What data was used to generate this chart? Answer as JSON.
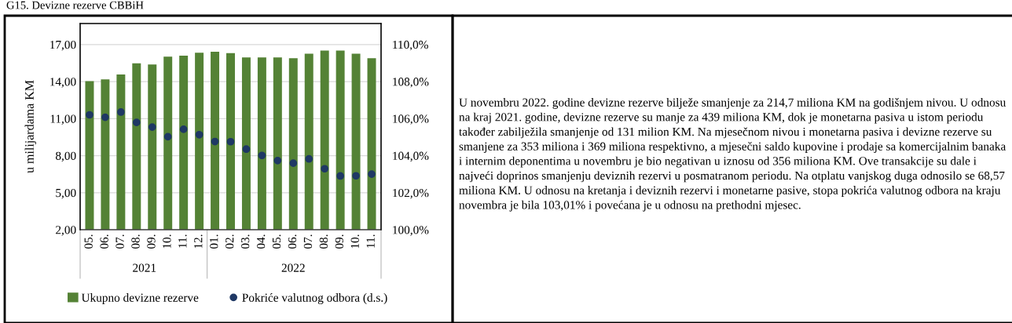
{
  "chart_data": {
    "type": "bar",
    "title": "G15. Devizne rezerve CBBiH",
    "ylabel": "u milijardama KM",
    "categories": [
      "05.",
      "06.",
      "07.",
      "08.",
      "09.",
      "10.",
      "11.",
      "12.",
      "01.",
      "02.",
      "03.",
      "04.",
      "05.",
      "06.",
      "07.",
      "08.",
      "09.",
      "10.",
      "11."
    ],
    "series": [
      {
        "name": "Ukupno devizne rezerve",
        "color": "#548235",
        "values": [
          14.04,
          14.17,
          14.57,
          15.47,
          15.39,
          16.01,
          16.1,
          16.34,
          16.42,
          16.31,
          15.95,
          15.95,
          15.96,
          15.89,
          16.25,
          16.51,
          16.51,
          16.25,
          15.89
        ]
      },
      {
        "name": "Pokriće valutnog odbora (d.s.)",
        "type": "scatter",
        "axis": "y2",
        "color": "#1f3864",
        "values": [
          106.2,
          106.07,
          106.35,
          105.79,
          105.54,
          105.02,
          105.42,
          105.13,
          104.76,
          104.75,
          104.35,
          104.01,
          103.73,
          103.59,
          103.82,
          103.29,
          102.9,
          102.91,
          103.0
        ]
      }
    ],
    "ylim": [
      2,
      18.7
    ],
    "yticks": [
      {
        "value": 2,
        "label": "2,00"
      },
      {
        "value": 5,
        "label": "5,00"
      },
      {
        "value": 8,
        "label": "8,00"
      },
      {
        "value": 11,
        "label": "11,00"
      },
      {
        "value": 14,
        "label": "14,00"
      },
      {
        "value": 17,
        "label": "17,00"
      }
    ],
    "y2lim": [
      100,
      111.13
    ],
    "y2ticks": [
      {
        "value": 100,
        "label": "100,0%"
      },
      {
        "value": 102,
        "label": "102,0%"
      },
      {
        "value": 104,
        "label": "104,0%"
      },
      {
        "value": 106,
        "label": "106,0%"
      },
      {
        "value": 108,
        "label": "108,0%"
      },
      {
        "value": 110,
        "label": "110,0%"
      }
    ],
    "grid": "y",
    "legend": "bottom",
    "marker": "circle",
    "annotations": [
      "2021",
      "2022",
      "U novembru 2022. godine devizne rezerve bilježe smanjenje za 214,7 miliona KM na godišnjem nivou. U odnosu na kraj 2021. godine, devizne rezerve su manje za 439 miliona KM, dok je monetarna pasiva u istom periodu također zabilježila smanjenje od 131 milion KM. Na mjesečnom nivou i monetarna pasiva i devizne rezerve su smanjene za 353 miliona i 369 miliona respektivno, a mjesečni saldo kupovine i prodaje sa komercijalnim banaka i internim deponentima u novembru je bio negativan u iznosu od 356 miliona KM. Ove transakcije su dale i najveći doprinos smanjenju deviznih rezervi u posmatranom periodu. Na otplatu vanjskog duga odnosilo se 68,57 miliona KM. U odnosu na kretanja i deviznih rezervi i monetarne pasive, stopa pokrića valutnog odbora na kraju novembra je bila 103,01% i povećana je u odnosu na prethodni mjesec."
    ]
  }
}
